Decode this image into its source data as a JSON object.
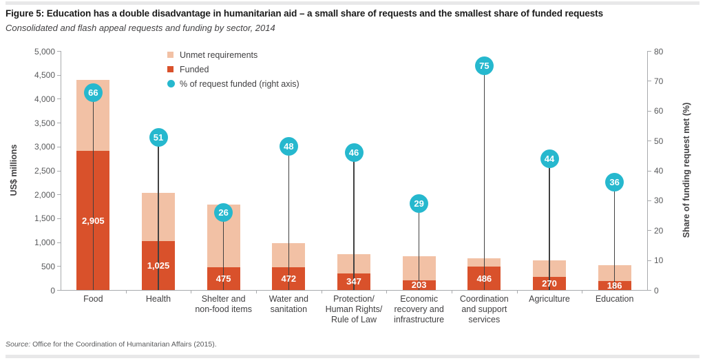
{
  "header": {
    "title": "Figure 5: Education has a double disadvantage in humanitarian aid – a small share of requests and the smallest share of funded requests",
    "subtitle": "Consolidated and flash appeal requests and funding by sector, 2014"
  },
  "legend": {
    "items": [
      {
        "label": "Unmet requirements",
        "color": "#f2c1a5",
        "shape": "square"
      },
      {
        "label": "Funded",
        "color": "#d9512b",
        "shape": "square"
      },
      {
        "label": "% of request funded (right axis)",
        "color": "#26b8ce",
        "shape": "circle"
      }
    ]
  },
  "chart_data": {
    "type": "bar",
    "title": "Consolidated and flash appeal requests and funding by sector, 2014",
    "categories": [
      "Food",
      "Health",
      "Shelter and non-food items",
      "Water and sanitation",
      "Protection/Human Rights/Rule of Law",
      "Economic recovery and infrastructure",
      "Coordination and support services",
      "Agriculture",
      "Education"
    ],
    "category_label_lines": [
      [
        "Food"
      ],
      [
        "Health"
      ],
      [
        "Shelter and",
        "non-food items"
      ],
      [
        "Water and",
        "sanitation"
      ],
      [
        "Protection/",
        "Human Rights/",
        "Rule of Law"
      ],
      [
        "Economic",
        "recovery and",
        "infrastructure"
      ],
      [
        "Coordination",
        "and support",
        "services"
      ],
      [
        "Agriculture"
      ],
      [
        "Education"
      ]
    ],
    "series": [
      {
        "name": "Funded",
        "color": "#d9512b",
        "values": [
          2905,
          1025,
          475,
          472,
          347,
          203,
          486,
          270,
          186
        ],
        "labels": [
          "2,905",
          "1,025",
          "475",
          "472",
          "347",
          "203",
          "486",
          "270",
          "186"
        ]
      },
      {
        "name": "Unmet requirements",
        "color": "#f2c1a5",
        "values": [
          1495,
          1005,
          1315,
          508,
          403,
          497,
          174,
          345,
          334
        ]
      },
      {
        "name": "% of request funded (right axis)",
        "axis": "right",
        "color": "#26b8ce",
        "values": [
          66,
          51,
          26,
          48,
          46,
          29,
          75,
          44,
          36
        ]
      }
    ],
    "totals": [
      4400,
      2030,
      1790,
      980,
      750,
      700,
      660,
      615,
      520
    ],
    "left_axis": {
      "label": "US$ millions",
      "min": 0,
      "max": 5000,
      "step": 500,
      "tick_labels": [
        "0",
        "500",
        "1,000",
        "1,500",
        "2,000",
        "2,500",
        "3,000",
        "3,500",
        "4,000",
        "4,500",
        "5,000"
      ]
    },
    "right_axis": {
      "label": "Share of funding request met (%)",
      "min": 0,
      "max": 80,
      "step": 10,
      "tick_labels": [
        "0",
        "10",
        "20",
        "30",
        "40",
        "50",
        "60",
        "70",
        "80"
      ]
    },
    "grid": false,
    "legend_position": "top-center"
  },
  "footer": {
    "source_label": "Source:",
    "source_text": " Office for the Coordination of Humanitarian Affairs (2015)."
  }
}
